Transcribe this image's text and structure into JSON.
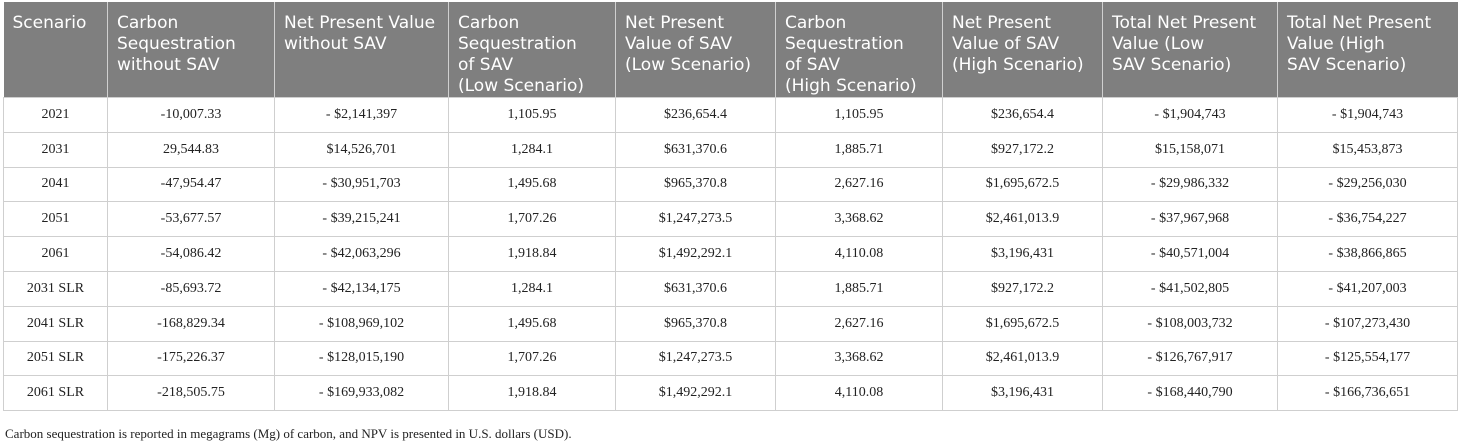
{
  "table": {
    "headers": [
      [
        "Scenario"
      ],
      [
        "Carbon",
        "Sequestration",
        "without SAV"
      ],
      [
        "Net Present Value",
        "without SAV"
      ],
      [
        "Carbon",
        "Sequestration",
        "of SAV",
        "(Low Scenario)"
      ],
      [
        "Net Present",
        "Value of SAV",
        "(Low Scenario)"
      ],
      [
        "Carbon",
        "Sequestration",
        "of SAV",
        "(High Scenario)"
      ],
      [
        "Net Present",
        "Value of SAV",
        "(High Scenario)"
      ],
      [
        "Total Net Present",
        "Value (Low",
        "SAV Scenario)"
      ],
      [
        "Total Net Present",
        "Value (High",
        "SAV Scenario)"
      ]
    ],
    "rows": [
      [
        "2021",
        "-10,007.33",
        "- $2,141,397",
        "1,105.95",
        "$236,654.4",
        "1,105.95",
        "$236,654.4",
        "- $1,904,743",
        "- $1,904,743"
      ],
      [
        "2031",
        "29,544.83",
        "$14,526,701",
        "1,284.1",
        "$631,370.6",
        "1,885.71",
        "$927,172.2",
        "$15,158,071",
        "$15,453,873"
      ],
      [
        "2041",
        "-47,954.47",
        "- $30,951,703",
        "1,495.68",
        "$965,370.8",
        "2,627.16",
        "$1,695,672.5",
        "- $29,986,332",
        "- $29,256,030"
      ],
      [
        "2051",
        "-53,677.57",
        "- $39,215,241",
        "1,707.26",
        "$1,247,273.5",
        "3,368.62",
        "$2,461,013.9",
        "- $37,967,968",
        "- $36,754,227"
      ],
      [
        "2061",
        "-54,086.42",
        "- $42,063,296",
        "1,918.84",
        "$1,492,292.1",
        "4,110.08",
        "$3,196,431",
        "- $40,571,004",
        "- $38,866,865"
      ],
      [
        "2031 SLR",
        "-85,693.72",
        "- $42,134,175",
        "1,284.1",
        "$631,370.6",
        "1,885.71",
        "$927,172.2",
        "- $41,502,805",
        "- $41,207,003"
      ],
      [
        "2041 SLR",
        "-168,829.34",
        "- $108,969,102",
        "1,495.68",
        "$965,370.8",
        "2,627.16",
        "$1,695,672.5",
        "- $108,003,732",
        "- $107,273,430"
      ],
      [
        "2051 SLR",
        "-175,226.37",
        "- $128,015,190",
        "1,707.26",
        "$1,247,273.5",
        "3,368.62",
        "$2,461,013.9",
        "- $126,767,917",
        "- $125,554,177"
      ],
      [
        "2061 SLR",
        "-218,505.75",
        "- $169,933,082",
        "1,918.84",
        "$1,492,292.1",
        "4,110.08",
        "$3,196,431",
        "- $168,440,790",
        "- $166,736,651"
      ]
    ]
  },
  "footnote": "Carbon sequestration is reported in megagrams (Mg) of carbon, and NPV is presented in U.S. dollars (USD).",
  "colors": {
    "header_background": "#7f7f7f",
    "header_text": "#ffffff",
    "grid_lines": "#cfcfcf"
  }
}
